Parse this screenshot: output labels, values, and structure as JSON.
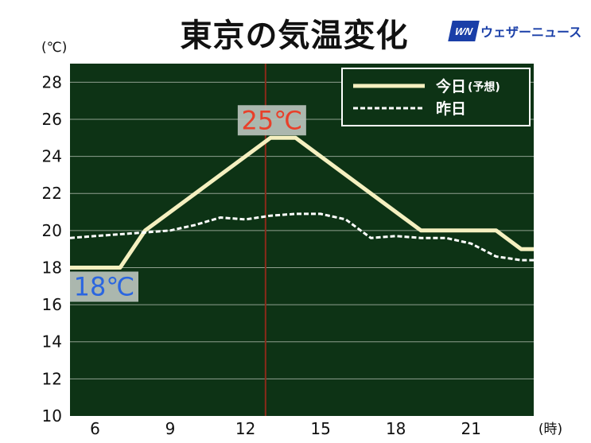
{
  "header": {
    "title": "東京の気温変化",
    "brand_mark": "WN",
    "brand_name": "ウェザーニュース",
    "brand_color": "#1a3fa8"
  },
  "chart_data": {
    "type": "line",
    "title": "東京の気温変化",
    "y_unit": "(℃)",
    "x_unit": "(時)",
    "xlim": [
      5,
      23.5
    ],
    "ylim": [
      10,
      29
    ],
    "x_ticks": [
      6,
      9,
      12,
      15,
      18,
      21
    ],
    "y_ticks": [
      10,
      12,
      14,
      16,
      18,
      20,
      22,
      24,
      26,
      28
    ],
    "grid": true,
    "background_color": "#0d3315",
    "legend_position": "top-right",
    "marker_line_x": 12.8,
    "series": [
      {
        "name": "今日",
        "name_note": "(予想)",
        "style": "solid",
        "color": "#f5f0c0",
        "x": [
          5,
          7,
          8,
          13,
          14,
          19,
          22,
          23,
          23.5
        ],
        "values": [
          18,
          18,
          20,
          25,
          25,
          20,
          20,
          19,
          19
        ]
      },
      {
        "name": "昨日",
        "style": "dashed",
        "color": "#ffffff",
        "x": [
          5,
          6,
          7,
          8,
          9,
          10,
          11,
          12,
          13,
          14,
          15,
          16,
          17,
          18,
          19,
          20,
          21,
          22,
          23,
          23.5
        ],
        "values": [
          19.6,
          19.7,
          19.8,
          19.9,
          20.0,
          20.3,
          20.7,
          20.6,
          20.8,
          20.9,
          20.9,
          20.6,
          19.6,
          19.7,
          19.6,
          19.6,
          19.3,
          18.6,
          18.4,
          18.4
        ]
      }
    ],
    "annotations": [
      {
        "text": "25℃",
        "x": 13.5,
        "y": 25,
        "color": "#e8402a",
        "anchor": "above"
      },
      {
        "text": "18℃",
        "x": 5,
        "y": 18,
        "color": "#2a66e0",
        "anchor": "below"
      }
    ]
  }
}
